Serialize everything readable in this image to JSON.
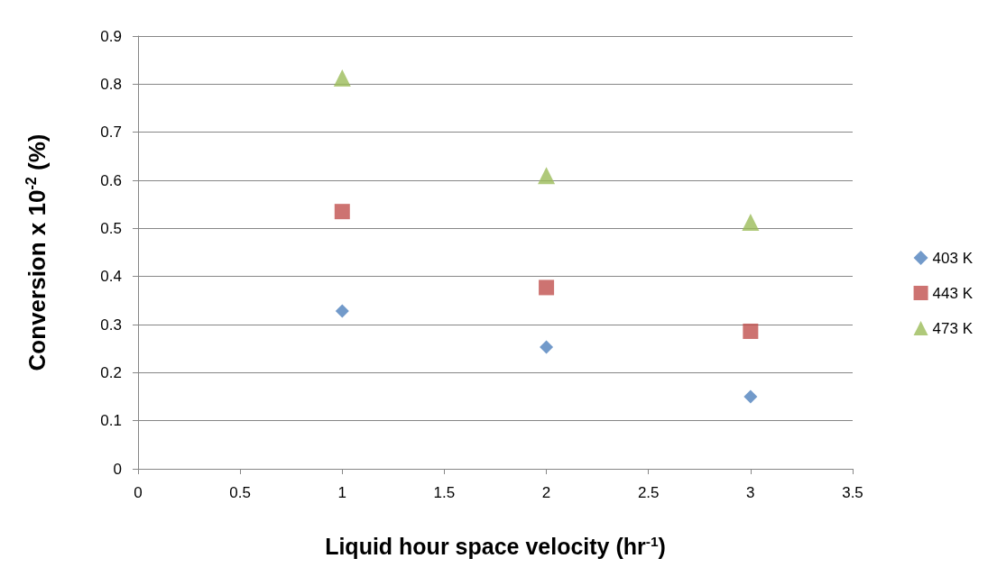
{
  "chart_data": {
    "type": "scatter",
    "xlabel": "Liquid hour space velocity (hr$^{-1}$)",
    "ylabel": "Conversion x 10$^{-2}$ (%)",
    "x": [
      1,
      2,
      3
    ],
    "series": [
      {
        "name": "403 K",
        "color": "#4f81bd",
        "marker": "diamond",
        "values": [
          0.328,
          0.253,
          0.15
        ]
      },
      {
        "name": "443 K",
        "color": "#c0504d",
        "marker": "square",
        "values": [
          0.535,
          0.377,
          0.286
        ]
      },
      {
        "name": "473 K",
        "color": "#9bbb59",
        "marker": "triangle",
        "values": [
          0.813,
          0.61,
          0.513
        ]
      }
    ],
    "xlim": [
      0,
      3.5
    ],
    "xticks": [
      0,
      0.5,
      1,
      1.5,
      2,
      2.5,
      3,
      3.5
    ],
    "ylim": [
      0,
      0.9
    ],
    "yticks": [
      0,
      0.1,
      0.2,
      0.3,
      0.4,
      0.5,
      0.6,
      0.7,
      0.8,
      0.9
    ],
    "grid": "y",
    "legend": "right"
  }
}
